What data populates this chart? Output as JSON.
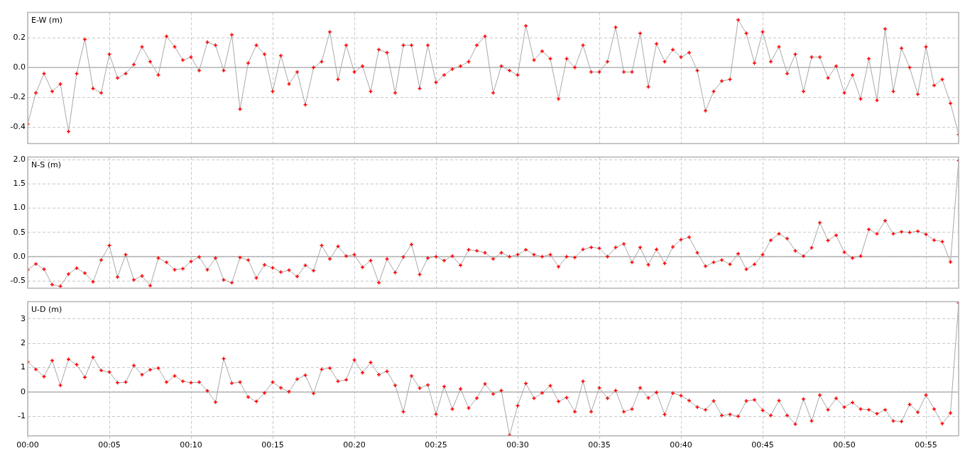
{
  "chart_data": [
    {
      "type": "line",
      "title": "E-W (m)",
      "x": [
        0,
        0.5,
        1,
        1.5,
        2,
        2.5,
        3,
        3.5,
        4,
        4.5,
        5,
        5.5,
        6,
        6.5,
        7,
        7.5,
        8,
        8.5,
        9,
        9.5,
        10,
        10.5,
        11,
        11.5,
        12,
        12.5,
        13,
        13.5,
        14,
        14.5,
        15,
        15.5,
        16,
        16.5,
        17,
        17.5,
        18,
        18.5,
        19,
        19.5,
        20,
        20.5,
        21,
        21.5,
        22,
        22.5,
        23,
        23.5,
        24,
        24.5,
        25,
        25.5,
        26,
        26.5,
        27,
        27.5,
        28,
        28.5,
        29,
        29.5,
        30,
        30.5,
        31,
        31.5,
        32,
        32.5,
        33,
        33.5,
        34,
        34.5,
        35,
        35.5,
        36,
        36.5,
        37,
        37.5,
        38,
        38.5,
        39,
        39.5,
        40,
        40.5,
        41,
        41.5,
        42,
        42.5,
        43,
        43.5,
        44,
        44.5,
        45,
        45.5,
        46,
        46.5,
        47,
        47.5,
        48,
        48.5,
        49,
        49.5,
        50,
        50.5,
        51,
        51.5,
        52,
        52.5,
        53,
        53.5,
        54,
        54.5,
        55,
        55.5,
        56,
        56.5,
        57
      ],
      "series": [
        {
          "color": "#a8a8a8",
          "colors": [
            "#ff0000",
            "#ff0000",
            "#ff0000",
            "#ff0000",
            "#ff0000",
            "#ff0000",
            "#ff0000",
            "#ff0000",
            "#ff0000",
            "#ff0000",
            "#ff0000",
            "#ff0000",
            "#ff0000",
            "#ff0000",
            "#ff0000",
            "#ff0000",
            "#ff0000",
            "#ff0000",
            "#ff0000",
            "#ff0000",
            "#ff0000",
            "#ff0000",
            "#ff0000",
            "#ff0000",
            "#ff0000",
            "#ff0000",
            "#ff0000",
            "#ff0000",
            "#ff0000",
            "#ff0000",
            "#ff0000",
            "#ff0000",
            "#ff0000",
            "#ff0000",
            "#ff0000",
            "#ff0000",
            "#ff0000",
            "#ff0000",
            "#ff0000",
            "#ff0000",
            "#ff0000",
            "#ff0000",
            "#ff0000",
            "#ff0000",
            "#ff0000",
            "#ff0000",
            "#ff0000",
            "#ff0000",
            "#ff0000",
            "#ff0000",
            "#ff0000",
            "#ff0000",
            "#ff0000",
            "#ff0000",
            "#ff0000",
            "#ff0000",
            "#ff0000",
            "#ff0000",
            "#ff0000",
            "#ff0000",
            "#ff0000",
            "#ff0000",
            "#ff0000",
            "#ff0000",
            "#ff0000",
            "#ff0000",
            "#ff0000",
            "#ff0000",
            "#ff0000",
            "#ff0000",
            "#ff0000",
            "#ff0000",
            "#ff0000",
            "#ff0000",
            "#ff0000",
            "#ff0000",
            "#ff0000",
            "#ff0000",
            "#ff0000",
            "#ff0000",
            "#ff0000",
            "#ff0000",
            "#ff0000",
            "#ff0000",
            "#ff0000",
            "#ff0000",
            "#ff0000",
            "#ff0000",
            "#ff0000",
            "#ff0000",
            "#ff0000",
            "#ff0000",
            "#ff0000",
            "#ff0000",
            "#ff0000",
            "#ff0000",
            "#ff0000",
            "#ff0000",
            "#ff0000",
            "#ff0000",
            "#ff0000",
            "#ff0000",
            "#ff0000",
            "#ff0000",
            "#ff0000",
            "#ff0000",
            "#ff0000",
            "#ff0000",
            "#ff0000",
            "#ff0000",
            "#ff0000",
            "#ff0000",
            "#ff0000",
            "#ff0000",
            "#ff0000"
          ],
          "values": [
            -0.38,
            -0.17,
            -0.04,
            -0.16,
            -0.11,
            -0.43,
            -0.04,
            0.19,
            -0.14,
            -0.17,
            0.09,
            -0.07,
            -0.04,
            0.02,
            0.14,
            0.04,
            -0.05,
            0.21,
            0.14,
            0.05,
            0.07,
            -0.02,
            0.17,
            0.15,
            -0.02,
            0.22,
            -0.28,
            0.03,
            0.15,
            0.09,
            -0.16,
            0.08,
            -0.11,
            -0.03,
            -0.25,
            0,
            0.04,
            0.24,
            -0.08,
            0.15,
            -0.03,
            0.01,
            -0.16,
            0.12,
            0.1,
            -0.17,
            0.15,
            0.15,
            -0.14,
            0.15,
            -0.1,
            -0.05,
            -0.01,
            0.01,
            0.04,
            0.15,
            0.21,
            -0.17,
            0.01,
            -0.02,
            -0.05,
            0.28,
            0.05,
            0.11,
            0.06,
            -0.21,
            0.06,
            0,
            0.15,
            -0.03,
            -0.03,
            0.04,
            0.27,
            -0.03,
            -0.03,
            0.23,
            -0.13,
            0.16,
            0.04,
            0.12,
            0.07,
            0.1,
            -0.02,
            -0.29,
            -0.16,
            -0.09,
            -0.08,
            0.32,
            0.23,
            0.03,
            0.24,
            0.04,
            0.14,
            -0.04,
            0.09,
            -0.16,
            0.07,
            0.07,
            -0.07,
            0.01,
            -0.17,
            -0.05,
            -0.21,
            0.06,
            -0.22,
            0.26,
            -0.16,
            0.13,
            0,
            -0.18,
            0.14,
            -0.12,
            -0.08,
            -0.24,
            -0.45
          ]
        }
      ],
      "xlim": [
        0,
        57
      ],
      "xticks": [
        {
          "value": 0,
          "label": null
        },
        {
          "value": 5,
          "label": null
        },
        {
          "value": 10,
          "label": null
        },
        {
          "value": 15,
          "label": null
        },
        {
          "value": 20,
          "label": null
        },
        {
          "value": 25,
          "label": null
        },
        {
          "value": 30,
          "label": null
        },
        {
          "value": 35,
          "label": null
        },
        {
          "value": 40,
          "label": null
        },
        {
          "value": 45,
          "label": null
        },
        {
          "value": 50,
          "label": null
        },
        {
          "value": 55,
          "label": null
        }
      ],
      "ylim": [
        -0.51,
        0.37
      ],
      "yticks": [
        -0.4,
        -0.2,
        {
          "value": 0,
          "label": "0.0"
        },
        0.2
      ],
      "ref_lines": [
        {
          "axis": "y",
          "value": 0
        }
      ],
      "grid": true,
      "marker": "cross",
      "line_style": "solid",
      "tick_labels": "y"
    },
    {
      "type": "line",
      "title": "N-S (m)",
      "x": [
        0,
        0.5,
        1,
        1.5,
        2,
        2.5,
        3,
        3.5,
        4,
        4.5,
        5,
        5.5,
        6,
        6.5,
        7,
        7.5,
        8,
        8.5,
        9,
        9.5,
        10,
        10.5,
        11,
        11.5,
        12,
        12.5,
        13,
        13.5,
        14,
        14.5,
        15,
        15.5,
        16,
        16.5,
        17,
        17.5,
        18,
        18.5,
        19,
        19.5,
        20,
        20.5,
        21,
        21.5,
        22,
        22.5,
        23,
        23.5,
        24,
        24.5,
        25,
        25.5,
        26,
        26.5,
        27,
        27.5,
        28,
        28.5,
        29,
        29.5,
        30,
        30.5,
        31,
        31.5,
        32,
        32.5,
        33,
        33.5,
        34,
        34.5,
        35,
        35.5,
        36,
        36.5,
        37,
        37.5,
        38,
        38.5,
        39,
        39.5,
        40,
        40.5,
        41,
        41.5,
        42,
        42.5,
        43,
        43.5,
        44,
        44.5,
        45,
        45.5,
        46,
        46.5,
        47,
        47.5,
        48,
        48.5,
        49,
        49.5,
        50,
        50.5,
        51,
        51.5,
        52,
        52.5,
        53,
        53.5,
        54,
        54.5,
        55,
        55.5,
        56,
        56.5,
        57
      ],
      "series": [
        {
          "color": "#a8a8a8",
          "colors": [
            "#ff0000",
            "#ff0000",
            "#ff0000",
            "#ff0000",
            "#ff0000",
            "#ff0000",
            "#ff0000",
            "#ff0000",
            "#ff0000",
            "#ff0000",
            "#ff0000",
            "#ff0000",
            "#ff0000",
            "#ff0000",
            "#ff0000",
            "#ff0000",
            "#ff0000",
            "#ff0000",
            "#ff0000",
            "#ff0000",
            "#ff0000",
            "#ff0000",
            "#ff0000",
            "#ff0000",
            "#ff0000",
            "#ff0000",
            "#ff0000",
            "#ff0000",
            "#ff0000",
            "#ff0000",
            "#ff0000",
            "#ff0000",
            "#ff0000",
            "#ff0000",
            "#ff0000",
            "#ff0000",
            "#ff0000",
            "#ff0000",
            "#ff0000",
            "#ff0000",
            "#ff0000",
            "#ff0000",
            "#ff0000",
            "#ff0000",
            "#ff0000",
            "#ff0000",
            "#ff0000",
            "#ff0000",
            "#ff0000",
            "#ff0000",
            "#ff0000",
            "#ff0000",
            "#ff0000",
            "#ff0000",
            "#ff0000",
            "#ff0000",
            "#ff0000",
            "#ff0000",
            "#ff0000",
            "#ff0000",
            "#ff0000",
            "#ff0000",
            "#ff0000",
            "#ff0000",
            "#ff0000",
            "#ff0000",
            "#ff0000",
            "#ff0000",
            "#ff0000",
            "#ff0000",
            "#ff0000",
            "#ff0000",
            "#ff0000",
            "#ff0000",
            "#ff0000",
            "#ff0000",
            "#ff0000",
            "#ff0000",
            "#ff0000",
            "#ff0000",
            "#ff0000",
            "#ff0000",
            "#ff0000",
            "#ff0000",
            "#ff0000",
            "#ff0000",
            "#ff0000",
            "#ff0000",
            "#ff0000",
            "#ff0000",
            "#ff0000",
            "#ff0000",
            "#ff0000",
            "#ff0000",
            "#ff0000",
            "#ff0000",
            "#ff0000",
            "#ff0000",
            "#ff0000",
            "#ff0000",
            "#ff0000",
            "#ff0000",
            "#ff0000",
            "#ff0000",
            "#ff0000",
            "#ff0000",
            "#ff0000",
            "#ff0000",
            "#ff0000",
            "#ff0000",
            "#ff0000",
            "#ff0000",
            "#ff0000",
            "#ff0000",
            "#ff0000"
          ],
          "values": [
            -0.27,
            -0.15,
            -0.26,
            -0.58,
            -0.61,
            -0.36,
            -0.24,
            -0.34,
            -0.52,
            -0.07,
            0.23,
            -0.42,
            0.04,
            -0.48,
            -0.4,
            -0.6,
            -0.03,
            -0.12,
            -0.27,
            -0.25,
            -0.1,
            -0.01,
            -0.27,
            -0.03,
            -0.48,
            -0.54,
            -0.02,
            -0.07,
            -0.44,
            -0.17,
            -0.23,
            -0.32,
            -0.28,
            -0.41,
            -0.18,
            -0.29,
            0.23,
            -0.05,
            0.21,
            0.01,
            0.04,
            -0.22,
            -0.08,
            -0.54,
            -0.05,
            -0.33,
            -0.01,
            0.25,
            -0.37,
            -0.03,
            0,
            -0.08,
            0.01,
            -0.18,
            0.14,
            0.12,
            0.08,
            -0.05,
            0.08,
            0,
            0.04,
            0.14,
            0.04,
            0,
            0.04,
            -0.21,
            0,
            -0.02,
            0.15,
            0.19,
            0.17,
            0,
            0.19,
            0.26,
            -0.12,
            0.19,
            -0.17,
            0.15,
            -0.14,
            0.2,
            0.35,
            0.4,
            0.08,
            -0.2,
            -0.12,
            -0.07,
            -0.16,
            0.06,
            -0.26,
            -0.16,
            0.04,
            0.34,
            0.47,
            0.37,
            0.12,
            0.01,
            0.18,
            0.7,
            0.33,
            0.44,
            0.09,
            -0.03,
            0.01,
            0.56,
            0.47,
            0.74,
            0.47,
            0.51,
            0.5,
            0.52,
            0.46,
            0.34,
            0.31,
            -0.11,
            1.98
          ]
        }
      ],
      "xlim": [
        0,
        57
      ],
      "xticks": [
        {
          "value": 0,
          "label": null
        },
        {
          "value": 5,
          "label": null
        },
        {
          "value": 10,
          "label": null
        },
        {
          "value": 15,
          "label": null
        },
        {
          "value": 20,
          "label": null
        },
        {
          "value": 25,
          "label": null
        },
        {
          "value": 30,
          "label": null
        },
        {
          "value": 35,
          "label": null
        },
        {
          "value": 40,
          "label": null
        },
        {
          "value": 45,
          "label": null
        },
        {
          "value": 50,
          "label": null
        },
        {
          "value": 55,
          "label": null
        }
      ],
      "ylim": [
        -0.65,
        2.05
      ],
      "yticks": [
        -0.5,
        {
          "value": 0,
          "label": "0.0"
        },
        0.5,
        {
          "value": 1,
          "label": "1.0"
        },
        1.5,
        {
          "value": 2,
          "label": "2.0"
        }
      ],
      "ref_lines": [
        {
          "axis": "y",
          "value": 0
        }
      ],
      "grid": true,
      "marker": "cross",
      "line_style": "solid",
      "tick_labels": "y"
    },
    {
      "type": "line",
      "title": "U-D (m)",
      "x": [
        0,
        0.5,
        1,
        1.5,
        2,
        2.5,
        3,
        3.5,
        4,
        4.5,
        5,
        5.5,
        6,
        6.5,
        7,
        7.5,
        8,
        8.5,
        9,
        9.5,
        10,
        10.5,
        11,
        11.5,
        12,
        12.5,
        13,
        13.5,
        14,
        14.5,
        15,
        15.5,
        16,
        16.5,
        17,
        17.5,
        18,
        18.5,
        19,
        19.5,
        20,
        20.5,
        21,
        21.5,
        22,
        22.5,
        23,
        23.5,
        24,
        24.5,
        25,
        25.5,
        26,
        26.5,
        27,
        27.5,
        28,
        28.5,
        29,
        29.5,
        30,
        30.5,
        31,
        31.5,
        32,
        32.5,
        33,
        33.5,
        34,
        34.5,
        35,
        35.5,
        36,
        36.5,
        37,
        37.5,
        38,
        38.5,
        39,
        39.5,
        40,
        40.5,
        41,
        41.5,
        42,
        42.5,
        43,
        43.5,
        44,
        44.5,
        45,
        45.5,
        46,
        46.5,
        47,
        47.5,
        48,
        48.5,
        49,
        49.5,
        50,
        50.5,
        51,
        51.5,
        52,
        52.5,
        53,
        53.5,
        54,
        54.5,
        55,
        55.5,
        56,
        56.5,
        57
      ],
      "series": [
        {
          "color": "#a8a8a8",
          "colors": [
            "#ff0000",
            "#ff0000",
            "#ff0000",
            "#ff0000",
            "#ff0000",
            "#ff0000",
            "#ff0000",
            "#ff0000",
            "#ff0000",
            "#ff0000",
            "#ff0000",
            "#ff0000",
            "#ff0000",
            "#ff0000",
            "#ff0000",
            "#ff0000",
            "#ff0000",
            "#ff0000",
            "#ff0000",
            "#ff0000",
            "#ff0000",
            "#ff0000",
            "#ff0000",
            "#ff0000",
            "#ff0000",
            "#ff0000",
            "#ff0000",
            "#ff0000",
            "#ff0000",
            "#ff0000",
            "#ff0000",
            "#ff0000",
            "#ff0000",
            "#ff0000",
            "#ff0000",
            "#ff0000",
            "#ff0000",
            "#ff0000",
            "#ff0000",
            "#ff0000",
            "#ff0000",
            "#ff0000",
            "#ff0000",
            "#ff0000",
            "#ff0000",
            "#ff0000",
            "#ff0000",
            "#ff0000",
            "#ff0000",
            "#ff0000",
            "#ff0000",
            "#ff0000",
            "#ff0000",
            "#ff0000",
            "#ff0000",
            "#ff0000",
            "#ff0000",
            "#ff0000",
            "#ff0000",
            "#ff0000",
            "#ff0000",
            "#ff0000",
            "#ff0000",
            "#ff0000",
            "#ff0000",
            "#ff0000",
            "#ff0000",
            "#ff0000",
            "#ff0000",
            "#ff0000",
            "#ff0000",
            "#ff0000",
            "#ff0000",
            "#ff0000",
            "#ff0000",
            "#ff0000",
            "#ff0000",
            "#ff0000",
            "#ff0000",
            "#ff0000",
            "#ff0000",
            "#ff0000",
            "#ff0000",
            "#ff0000",
            "#ff0000",
            "#ff0000",
            "#ff0000",
            "#ff0000",
            "#ff0000",
            "#ff0000",
            "#ff0000",
            "#ff0000",
            "#ff0000",
            "#ff0000",
            "#ff0000",
            "#ff0000",
            "#ff0000",
            "#ff0000",
            "#ff0000",
            "#ff0000",
            "#ff0000",
            "#ff0000",
            "#ff0000",
            "#ff0000",
            "#ff0000",
            "#ff0000",
            "#ff0000",
            "#ff0000",
            "#ff0000",
            "#ff0000",
            "#ff0000",
            "#ff0000",
            "#ff0000",
            "#ff0000",
            "#ff0000"
          ],
          "values": [
            1.24,
            0.93,
            0.63,
            1.29,
            0.27,
            1.34,
            1.12,
            0.6,
            1.42,
            0.88,
            0.82,
            0.38,
            0.4,
            1.09,
            0.71,
            0.91,
            0.98,
            0.4,
            0.66,
            0.44,
            0.38,
            0.4,
            0.05,
            -0.42,
            1.37,
            0.36,
            0.4,
            -0.21,
            -0.39,
            -0.04,
            0.4,
            0.17,
            0.01,
            0.53,
            0.69,
            -0.06,
            0.93,
            0.98,
            0.44,
            0.5,
            1.31,
            0.79,
            1.21,
            0.71,
            0.85,
            0.27,
            -0.81,
            0.66,
            0.16,
            0.29,
            -0.91,
            0.22,
            -0.7,
            0.13,
            -0.66,
            -0.25,
            0.33,
            -0.08,
            0.06,
            -1.78,
            -0.56,
            0.35,
            -0.26,
            -0.04,
            0.26,
            -0.39,
            -0.23,
            -0.81,
            0.44,
            -0.81,
            0.17,
            -0.26,
            0.06,
            -0.81,
            -0.7,
            0.17,
            -0.24,
            -0.02,
            -0.92,
            -0.05,
            -0.15,
            -0.35,
            -0.62,
            -0.73,
            -0.37,
            -0.96,
            -0.92,
            -1.0,
            -0.37,
            -0.32,
            -0.75,
            -0.96,
            -0.35,
            -0.96,
            -1.32,
            -0.29,
            -1.19,
            -0.13,
            -0.73,
            -0.26,
            -0.62,
            -0.43,
            -0.7,
            -0.73,
            -0.89,
            -0.73,
            -1.19,
            -1.21,
            -0.51,
            -0.83,
            -0.13,
            -0.7,
            -1.3,
            -0.86,
            3.65
          ]
        }
      ],
      "xlim": [
        0,
        57
      ],
      "xticks": [
        {
          "value": 0,
          "label": "00:00"
        },
        {
          "value": 5,
          "label": "00:05"
        },
        {
          "value": 10,
          "label": "00:10"
        },
        {
          "value": 15,
          "label": "00:15"
        },
        {
          "value": 20,
          "label": "00:20"
        },
        {
          "value": 25,
          "label": "00:25"
        },
        {
          "value": 30,
          "label": "00:30"
        },
        {
          "value": 35,
          "label": "00:35"
        },
        {
          "value": 40,
          "label": "00:40"
        },
        {
          "value": 45,
          "label": "00:45"
        },
        {
          "value": 50,
          "label": "00:50"
        },
        {
          "value": 55,
          "label": "00:55"
        }
      ],
      "ylim": [
        -1.8,
        3.7
      ],
      "yticks": [
        -1,
        0,
        1,
        2,
        3
      ],
      "ref_lines": [
        {
          "axis": "y",
          "value": 0
        }
      ],
      "grid": true,
      "marker": "cross",
      "line_style": "solid"
    }
  ]
}
